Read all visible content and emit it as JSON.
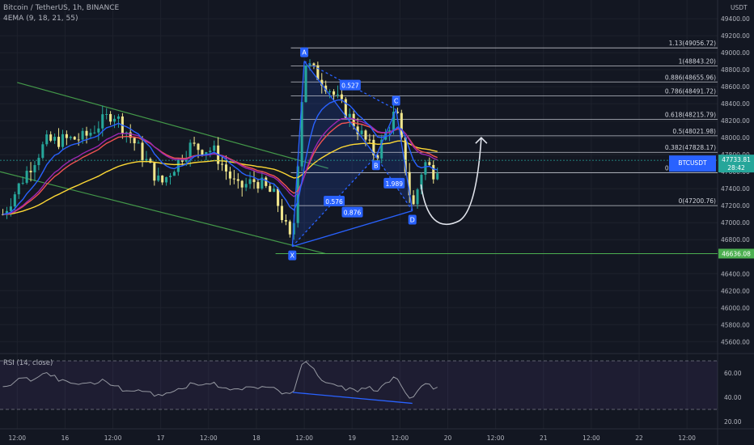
{
  "header": {
    "symbol_line": "Bitcoin / TetherUS, 1h, BINANCE",
    "indicator_line": "4EMA (9, 18, 21, 55)",
    "currency": "USDT"
  },
  "rsi": {
    "label": "RSI (14, close)",
    "ticks": [
      "60.00",
      "40.00",
      "20.00"
    ],
    "tick_values": [
      60,
      40,
      20
    ],
    "band_upper": 70,
    "band_lower": 30,
    "ylim": [
      14,
      76
    ]
  },
  "price_label": {
    "symbol": "BTCUSDT",
    "price": "47733.81",
    "countdown": "28:42",
    "value": 47733.81,
    "color": "#26a69a"
  },
  "support_label": {
    "text": "46636.08",
    "value": 46636.08,
    "color": "#4caf50"
  },
  "fib_levels": [
    {
      "label": "1.13(49056.72)",
      "value": 49056.72
    },
    {
      "label": "1(48843.20)",
      "value": 48843.2
    },
    {
      "label": "0.886(48655.96)",
      "value": 48655.96
    },
    {
      "label": "0.786(48491.72)",
      "value": 48491.72
    },
    {
      "label": "0.618(48215.79)",
      "value": 48215.79
    },
    {
      "label": "0.5(48021.98)",
      "value": 48021.98
    },
    {
      "label": "0.382(47828.17)",
      "value": 47828.17
    },
    {
      "label": "0.236(47588.38)",
      "value": 47588.38
    },
    {
      "label": "0(47200.76)",
      "value": 47200.76
    }
  ],
  "pattern": {
    "points": [
      {
        "name": "X",
        "time": 18.375,
        "price": 46720
      },
      {
        "name": "A",
        "time": 18.5,
        "price": 48900
      },
      {
        "name": "B",
        "time": 19.25,
        "price": 47780
      },
      {
        "name": "C",
        "time": 19.46,
        "price": 48330
      },
      {
        "name": "D",
        "time": 19.63,
        "price": 47140
      }
    ],
    "ratios": [
      "0.527",
      "0.576",
      "1.989",
      "0.876"
    ],
    "color": "#2962ff"
  },
  "colors": {
    "background": "#131722",
    "grid": "#1e222d",
    "axis_text": "#b2b5be",
    "bull": "#26a69a",
    "bear": "#f0e68c",
    "ema9": "#2962ff",
    "ema18": "#9c27b0",
    "ema21": "#f05252",
    "ema55": "#fdd835",
    "channel": "#4caf50",
    "rsi_line": "#9598a1"
  },
  "chart_data": {
    "type": "candlestick",
    "title": "Bitcoin / TetherUS, 1h, BINANCE",
    "y_ticks": [
      49400,
      49200,
      49000,
      48800,
      48600,
      48400,
      48200,
      48000,
      47800,
      47600,
      47400,
      47200,
      47000,
      46800,
      46400,
      46200,
      46000,
      45800,
      45600
    ],
    "ylim": [
      45460,
      49620
    ],
    "x_tick_labels": [
      "12:00",
      "16",
      "12:00",
      "17",
      "12:00",
      "18",
      "12:00",
      "19",
      "12:00",
      "20",
      "12:00",
      "21",
      "12:00",
      "22",
      "12:00"
    ],
    "x_tick_times": [
      15.5,
      16,
      16.5,
      17,
      17.5,
      18,
      18.5,
      19,
      19.5,
      20,
      20.5,
      21,
      21.5,
      22,
      22.5
    ],
    "xlim": [
      15.32,
      22.82
    ],
    "series": {
      "close_approx": [
        {
          "time": 15.35,
          "price": 47100
        },
        {
          "time": 15.6,
          "price": 47600
        },
        {
          "time": 15.8,
          "price": 47950
        },
        {
          "time": 16.2,
          "price": 48000
        },
        {
          "time": 16.5,
          "price": 48300
        },
        {
          "time": 16.75,
          "price": 47900
        },
        {
          "time": 17.0,
          "price": 47450
        },
        {
          "time": 17.3,
          "price": 47900
        },
        {
          "time": 17.55,
          "price": 47850
        },
        {
          "time": 17.8,
          "price": 47400
        },
        {
          "time": 18.0,
          "price": 47500
        },
        {
          "time": 18.2,
          "price": 47300
        },
        {
          "time": 18.375,
          "price": 46720
        },
        {
          "time": 18.5,
          "price": 48900
        },
        {
          "time": 18.75,
          "price": 48600
        },
        {
          "time": 19.0,
          "price": 48200
        },
        {
          "time": 19.25,
          "price": 47780
        },
        {
          "time": 19.46,
          "price": 48330
        },
        {
          "time": 19.63,
          "price": 47140
        },
        {
          "time": 19.75,
          "price": 47720
        },
        {
          "time": 19.85,
          "price": 47600
        },
        {
          "time": 19.93,
          "price": 47734
        }
      ]
    }
  }
}
